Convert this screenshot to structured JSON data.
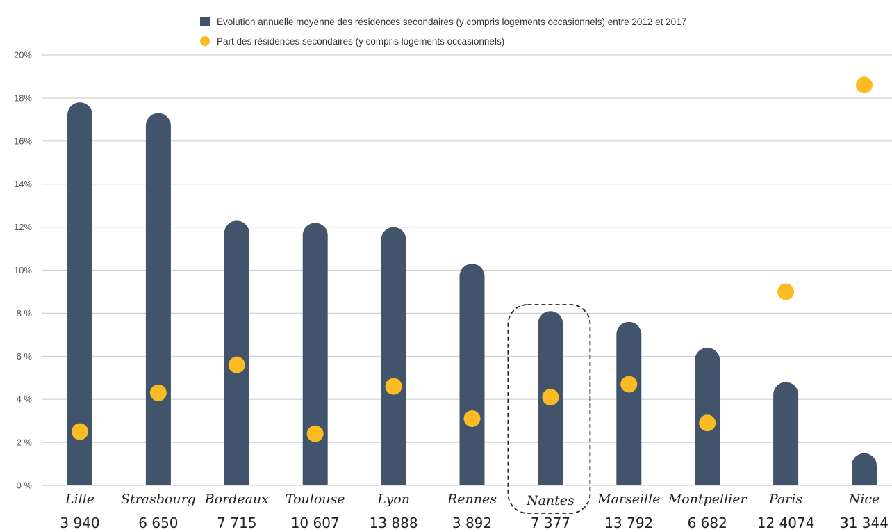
{
  "legend": {
    "bar_label": "Évolution annuelle moyenne des résidences secondaires (y compris logements occasionnels) entre 2012 et 2017",
    "dot_label": "Part des résidences secondaires (y compris logements occasionnels)"
  },
  "colors": {
    "bar": "#42546b",
    "dot": "#fbbb22",
    "grid": "#d0d0d0",
    "highlight_border": "#222222"
  },
  "chart_data": {
    "type": "bar",
    "categories": [
      "Lille",
      "Strasbourg",
      "Bordeaux",
      "Toulouse",
      "Lyon",
      "Rennes",
      "Nantes",
      "Marseille",
      "Montpellier",
      "Paris",
      "Nice"
    ],
    "counts": [
      "3 940",
      "6 650",
      "7 715",
      "10 607",
      "13 888",
      "3 892",
      "7 377",
      "13 792",
      "6 682",
      "12 4074",
      "31 344"
    ],
    "series": [
      {
        "name": "Évolution annuelle moyenne des résidences secondaires (y compris logements occasionnels) entre 2012 et 2017",
        "type": "bar",
        "values": [
          17.8,
          17.3,
          12.3,
          12.2,
          12.0,
          10.3,
          8.1,
          7.6,
          6.4,
          4.8,
          1.5
        ]
      },
      {
        "name": "Part des résidences secondaires (y compris logements occasionnels)",
        "type": "scatter",
        "values": [
          2.5,
          4.3,
          5.6,
          2.4,
          4.6,
          3.1,
          4.1,
          4.7,
          2.9,
          9.0,
          18.6
        ]
      }
    ],
    "yticks": [
      "0 %",
      "2 %",
      "4 %",
      "6 %",
      "8 %",
      "10%",
      "12%",
      "14%",
      "16%",
      "18%",
      "20%"
    ],
    "ylim": [
      0,
      20
    ],
    "grid": true,
    "legend_position": "top",
    "highlighted_category": "Nantes"
  }
}
